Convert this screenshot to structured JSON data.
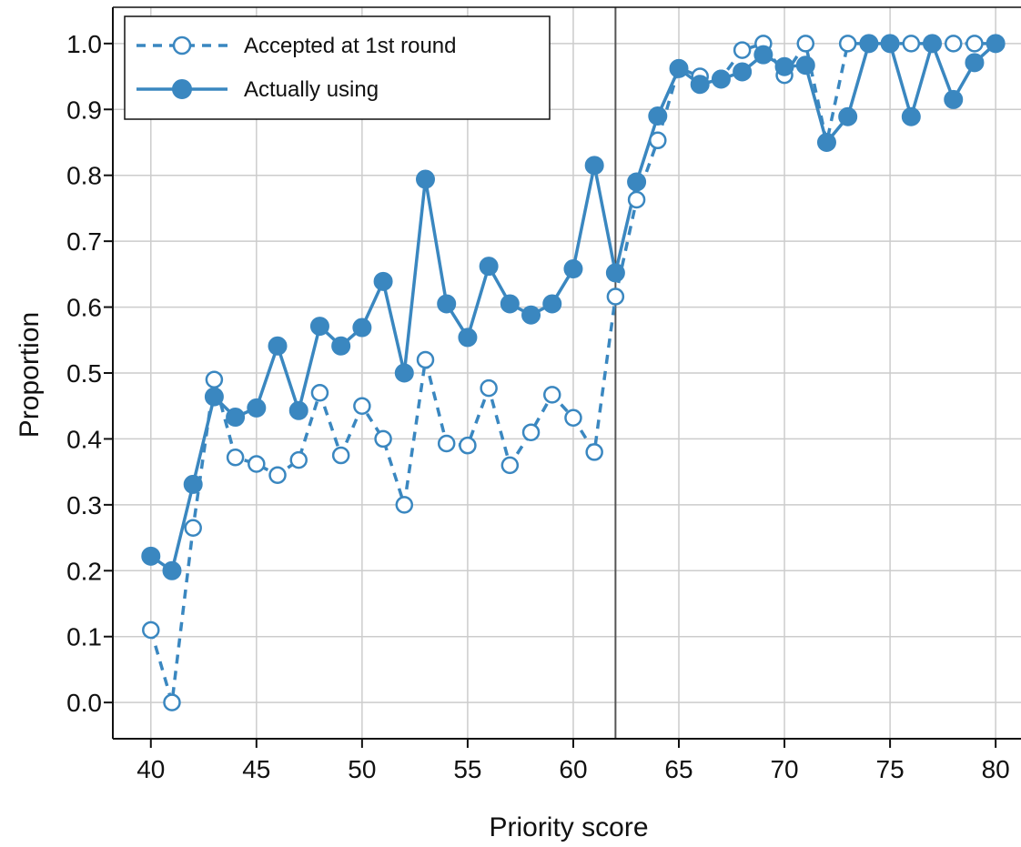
{
  "chart_data": {
    "type": "line",
    "title": "",
    "xlabel": "Priority score",
    "ylabel": "Proportion",
    "xlim": [
      38.2,
      81.2
    ],
    "ylim": [
      -0.055,
      1.055
    ],
    "xticks": [
      40,
      45,
      50,
      55,
      60,
      65,
      70,
      75,
      80
    ],
    "yticks": [
      0.0,
      0.1,
      0.2,
      0.3,
      0.4,
      0.5,
      0.6,
      0.7,
      0.8,
      0.9,
      1.0
    ],
    "xtick_labels": [
      "40",
      "45",
      "50",
      "55",
      "60",
      "65",
      "70",
      "75",
      "80"
    ],
    "ytick_labels": [
      "0.0",
      "0.1",
      "0.2",
      "0.3",
      "0.4",
      "0.5",
      "0.6",
      "0.7",
      "0.8",
      "0.9",
      "1.0"
    ],
    "grid": true,
    "legend_position": "top-left",
    "vline_x": 62,
    "vline_color": "#555555",
    "color": "#3a87c0",
    "x": [
      40,
      41,
      42,
      43,
      44,
      45,
      46,
      47,
      48,
      49,
      50,
      51,
      52,
      53,
      54,
      55,
      56,
      57,
      58,
      59,
      60,
      61,
      62,
      63,
      64,
      65,
      66,
      67,
      68,
      69,
      70,
      71,
      72,
      73,
      74,
      75,
      76,
      77,
      78,
      79,
      80
    ],
    "series": [
      {
        "name": "Accepted at 1st round",
        "style": "dashed-open-markers",
        "values": [
          0.11,
          0.0,
          0.265,
          0.49,
          0.372,
          0.362,
          0.345,
          0.368,
          0.47,
          0.375,
          0.45,
          0.4,
          0.3,
          0.52,
          0.393,
          0.39,
          0.477,
          0.36,
          0.41,
          0.467,
          0.432,
          0.38,
          0.616,
          0.763,
          0.853,
          0.963,
          0.95,
          0.947,
          0.99,
          1.0,
          0.952,
          1.0,
          0.85,
          1.0,
          1.0,
          1.0,
          1.0,
          1.0,
          1.0,
          1.0,
          1.0
        ]
      },
      {
        "name": "Actually using",
        "style": "solid-filled-markers",
        "values": [
          0.222,
          0.2,
          0.331,
          0.464,
          0.433,
          0.447,
          0.541,
          0.443,
          0.571,
          0.541,
          0.569,
          0.639,
          0.5,
          0.794,
          0.605,
          0.554,
          0.662,
          0.605,
          0.588,
          0.605,
          0.658,
          0.815,
          0.652,
          0.79,
          0.89,
          0.962,
          0.938,
          0.946,
          0.957,
          0.983,
          0.965,
          0.967,
          0.85,
          0.889,
          1.0,
          1.0,
          0.889,
          1.0,
          0.915,
          0.971,
          1.0
        ]
      }
    ]
  }
}
